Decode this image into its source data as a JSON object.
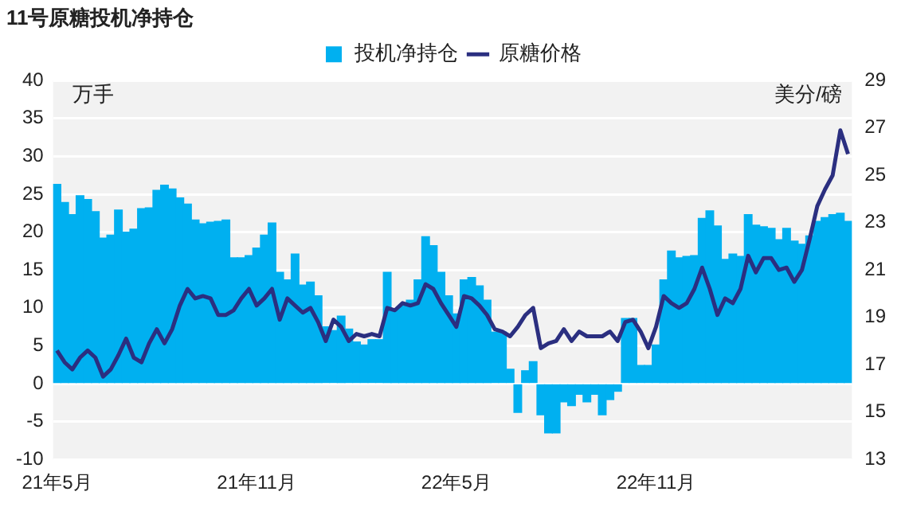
{
  "chart_data": {
    "type": "bar",
    "title": "11号原糖投机净持仓",
    "ylabel": "万手",
    "y2label": "美分/磅",
    "categories": [
      "21年5月",
      null,
      null,
      null,
      null,
      null,
      null,
      null,
      null,
      null,
      null,
      null,
      null,
      null,
      null,
      null,
      null,
      null,
      null,
      null,
      null,
      null,
      null,
      null,
      null,
      null,
      "21年11月",
      null,
      null,
      null,
      null,
      null,
      null,
      null,
      null,
      null,
      null,
      null,
      null,
      null,
      null,
      null,
      null,
      null,
      null,
      null,
      null,
      null,
      null,
      null,
      null,
      null,
      "22年5月",
      null,
      null,
      null,
      null,
      null,
      null,
      null,
      null,
      null,
      null,
      null,
      null,
      null,
      null,
      null,
      null,
      null,
      null,
      null,
      null,
      null,
      null,
      null,
      null,
      null,
      "22年11月",
      null,
      null,
      null,
      null,
      null,
      null,
      null,
      null,
      null,
      null,
      null,
      null,
      null,
      null,
      null,
      null,
      null,
      null,
      null,
      null,
      null,
      null,
      null,
      null,
      null
    ],
    "series": [
      {
        "name": "投机净持仓",
        "color": "#00b0f0",
        "values": [
          26.3,
          23.9,
          22.3,
          24.8,
          24.3,
          22.7,
          19.2,
          19.6,
          22.9,
          20.0,
          20.4,
          23.1,
          23.2,
          25.5,
          26.2,
          25.7,
          24.5,
          23.7,
          21.6,
          21.1,
          21.3,
          21.4,
          21.6,
          16.6,
          16.6,
          16.9,
          17.9,
          19.6,
          21.2,
          14.7,
          13.7,
          17.1,
          13.0,
          13.4,
          11.6,
          7.5,
          7.0,
          8.9,
          7.2,
          5.5,
          5.1,
          5.8,
          5.8,
          14.7,
          9.9,
          10.3,
          11.0,
          13.7,
          19.4,
          18.2,
          14.7,
          11.6,
          9.2,
          13.7,
          14.0,
          12.9,
          11.0,
          6.8,
          6.8,
          1.9,
          -3.8,
          1.7,
          2.9,
          -4.1,
          -6.5,
          -6.5,
          -2.4,
          -2.9,
          -1.4,
          -2.4,
          -1.4,
          -4.1,
          -2.1,
          -1.0,
          8.6,
          8.6,
          2.4,
          2.4,
          5.1,
          13.7,
          17.5,
          16.6,
          16.8,
          16.9,
          21.8,
          22.8,
          20.8,
          16.4,
          17.1,
          16.8,
          22.3,
          20.9,
          20.7,
          20.5,
          19.0,
          20.5,
          18.8,
          18.4,
          19.5,
          21.4,
          21.9,
          22.3,
          22.5,
          21.4
        ]
      },
      {
        "name": "原糖价格",
        "type": "line",
        "axis": "y2",
        "color": "#2b2f80",
        "values": [
          17.6,
          17.1,
          16.8,
          17.3,
          17.6,
          17.3,
          16.5,
          16.8,
          17.4,
          18.1,
          17.3,
          17.1,
          17.9,
          18.5,
          17.9,
          18.5,
          19.5,
          20.2,
          19.8,
          19.9,
          19.8,
          19.1,
          19.1,
          19.3,
          19.8,
          20.2,
          19.5,
          19.8,
          20.2,
          18.9,
          19.8,
          19.5,
          19.2,
          19.4,
          18.8,
          18.0,
          18.9,
          18.6,
          18.0,
          18.3,
          18.2,
          18.3,
          18.2,
          19.4,
          19.3,
          19.6,
          19.5,
          19.6,
          20.4,
          20.2,
          19.6,
          19.1,
          18.6,
          19.9,
          19.8,
          19.5,
          19.1,
          18.5,
          18.4,
          18.2,
          18.6,
          19.1,
          19.4,
          17.7,
          17.9,
          18.0,
          18.5,
          18.0,
          18.4,
          18.2,
          18.2,
          18.2,
          18.4,
          18.0,
          18.8,
          18.9,
          18.4,
          17.7,
          18.6,
          19.9,
          19.6,
          19.4,
          19.6,
          20.2,
          21.1,
          20.2,
          19.1,
          19.8,
          19.6,
          20.2,
          21.6,
          20.9,
          21.5,
          21.5,
          21.0,
          21.1,
          20.5,
          21.0,
          22.3,
          23.7,
          24.4,
          25.0,
          26.9,
          25.9
        ]
      }
    ],
    "ylim": [
      -10,
      40
    ],
    "yticks": [
      -10,
      -5,
      0,
      5,
      10,
      15,
      20,
      25,
      30,
      35,
      40
    ],
    "y2lim": [
      13,
      29
    ],
    "y2ticks": [
      13,
      15,
      17,
      19,
      21,
      23,
      25,
      27,
      29
    ],
    "grid": "y",
    "legend": "top",
    "marker": "none"
  }
}
